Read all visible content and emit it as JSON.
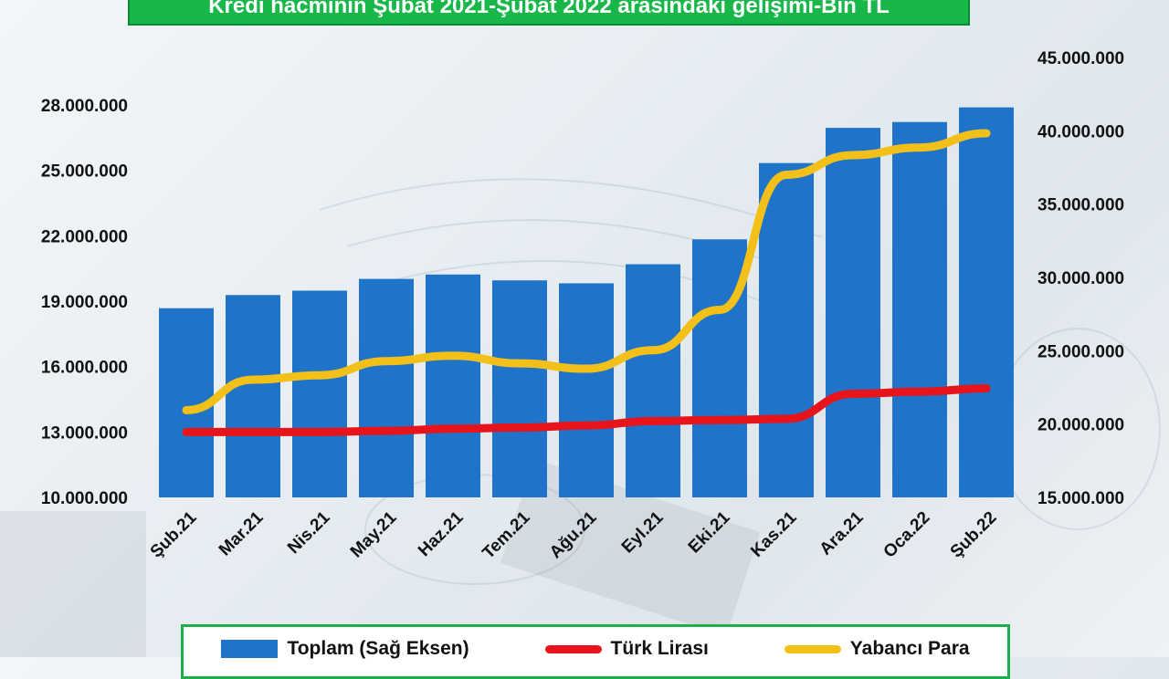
{
  "title": "Kredi hacminin Şubat 2021-Şubat 2022 arasındaki gelişimi-Bin TL",
  "chart_data": {
    "type": "bar",
    "categories": [
      "Şub.21",
      "Mar.21",
      "Nis.21",
      "May.21",
      "Haz.21",
      "Tem.21",
      "Ağu.21",
      "Eyl.21",
      "Eki.21",
      "Kas.21",
      "Ara.21",
      "Oca.22",
      "Şub.22"
    ],
    "left_axis": {
      "ylim": [
        10000000,
        28000000
      ],
      "ticks": [
        10000000,
        13000000,
        16000000,
        19000000,
        22000000,
        25000000,
        28000000
      ],
      "tick_labels": [
        "10.000.000",
        "13.000.000",
        "16.000.000",
        "19.000.000",
        "22.000.000",
        "25.000.000",
        "28.000.000"
      ]
    },
    "right_axis": {
      "ylim": [
        15000000,
        45000000
      ],
      "ticks": [
        15000000,
        20000000,
        25000000,
        30000000,
        35000000,
        40000000,
        45000000
      ],
      "tick_labels": [
        "15.000.000",
        "20.000.000",
        "25.000.000",
        "30.000.000",
        "35.000.000",
        "40.000.000",
        "45.000.000"
      ]
    },
    "series": [
      {
        "name": "Toplam (Sağ Eksen)",
        "type": "bar",
        "axis": "right",
        "color": "#1f73c8",
        "values": [
          27900000,
          28800000,
          29100000,
          29900000,
          30200000,
          29800000,
          29600000,
          30900000,
          32600000,
          37800000,
          40200000,
          40600000,
          41600000
        ]
      },
      {
        "name": "Türk Lirası",
        "type": "line",
        "axis": "left",
        "color": "#e8141c",
        "values": [
          13000000,
          13000000,
          13000000,
          13050000,
          13150000,
          13200000,
          13300000,
          13500000,
          13550000,
          13600000,
          14750000,
          14850000,
          15000000
        ]
      },
      {
        "name": "Yabancı Para",
        "type": "line",
        "axis": "left",
        "color": "#f3c01a",
        "values": [
          14000000,
          15400000,
          15600000,
          16250000,
          16500000,
          16150000,
          15900000,
          16750000,
          18600000,
          24800000,
          25700000,
          26050000,
          26700000
        ]
      }
    ],
    "legend_position": "bottom"
  }
}
